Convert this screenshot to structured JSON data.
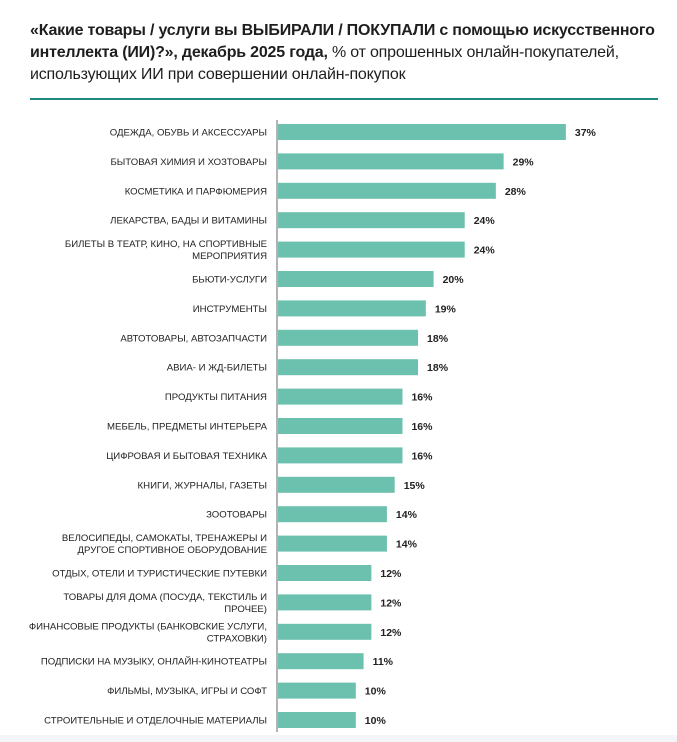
{
  "chart_data": {
    "type": "bar",
    "orientation": "horizontal",
    "title_bold": "«Какие товары / услуги вы ВЫБИРАЛИ / ПОКУПАЛИ с помощью искусственного интеллекта (ИИ)?», декабрь 2025 года,",
    "title_rest": " % от опрошенных онлайн-покупателей, использующих ИИ при совершении онлайн-покупок",
    "categories": [
      [
        "ОДЕЖДА, ОБУВЬ И АКСЕССУАРЫ"
      ],
      [
        "БЫТОВАЯ ХИМИЯ И ХОЗТОВАРЫ"
      ],
      [
        "КОСМЕТИКА И ПАРФЮМЕРИЯ"
      ],
      [
        "ЛЕКАРСТВА, БАДЫ И ВИТАМИНЫ"
      ],
      [
        "БИЛЕТЫ В ТЕАТР, КИНО, НА СПОРТИВНЫЕ",
        "МЕРОПРИЯТИЯ"
      ],
      [
        "БЬЮТИ-УСЛУГИ"
      ],
      [
        "ИНСТРУМЕНТЫ"
      ],
      [
        "АВТОТОВАРЫ, АВТОЗАПЧАСТИ"
      ],
      [
        "АВИА- И ЖД-БИЛЕТЫ"
      ],
      [
        "ПРОДУКТЫ ПИТАНИЯ"
      ],
      [
        "МЕБЕЛЬ, ПРЕДМЕТЫ ИНТЕРЬЕРА"
      ],
      [
        "ЦИФРОВАЯ И БЫТОВАЯ ТЕХНИКА"
      ],
      [
        "КНИГИ, ЖУРНАЛЫ, ГАЗЕТЫ"
      ],
      [
        "ЗООТОВАРЫ"
      ],
      [
        "ВЕЛОСИПЕДЫ, САМОКАТЫ, ТРЕНАЖЕРЫ И",
        "ДРУГОЕ СПОРТИВНОЕ ОБОРУДОВАНИЕ"
      ],
      [
        "ОТДЫХ, ОТЕЛИ И ТУРИСТИЧЕСКИЕ ПУТЕВКИ"
      ],
      [
        "ТОВАРЫ ДЛЯ ДОМА (ПОСУДА, ТЕКСТИЛЬ И",
        "ПРОЧЕЕ)"
      ],
      [
        "ФИНАНСОВЫЕ ПРОДУКТЫ (БАНКОВСКИЕ УСЛУГИ,",
        "СТРАХОВКИ)"
      ],
      [
        "ПОДПИСКИ НА МУЗЫКУ, ОНЛАЙН-КИНОТЕАТРЫ"
      ],
      [
        "ФИЛЬМЫ, МУЗЫКА, ИГРЫ И СОФТ"
      ],
      [
        "СТРОИТЕЛЬНЫЕ И ОТДЕЛОЧНЫЕ МАТЕРИАЛЫ"
      ]
    ],
    "values": [
      37,
      29,
      28,
      24,
      24,
      20,
      19,
      18,
      18,
      16,
      16,
      16,
      15,
      14,
      14,
      12,
      12,
      12,
      11,
      10,
      10
    ],
    "value_labels": [
      "37%",
      "29%",
      "28%",
      "24%",
      "24%",
      "20%",
      "19%",
      "18%",
      "18%",
      "16%",
      "16%",
      "16%",
      "15%",
      "14%",
      "14%",
      "12%",
      "12%",
      "12%",
      "11%",
      "10%",
      "10%"
    ],
    "unit": "%",
    "xlim": [
      0,
      40
    ],
    "grid": false,
    "legend": "none",
    "bar_color": "#6cc0ae",
    "accent_color": "#1f8a82"
  }
}
